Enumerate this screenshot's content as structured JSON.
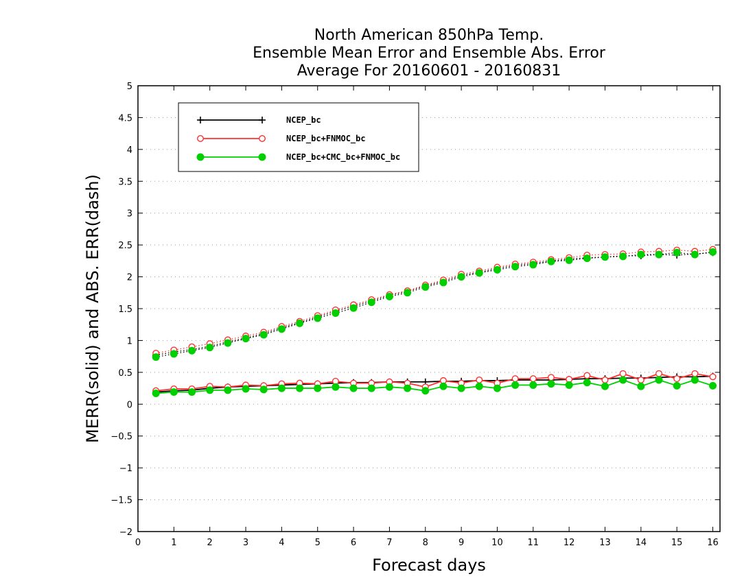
{
  "chart_data": {
    "type": "line",
    "title_lines": [
      "North American 850hPa Temp.",
      "Ensemble Mean Error and Ensemble Abs. Error",
      "Average For 20160601 - 20160831"
    ],
    "xlabel": "Forecast days",
    "ylabel": "MERR(solid) and ABS. ERR(dash)",
    "xlim": [
      0,
      16.2
    ],
    "ylim": [
      -2,
      5
    ],
    "xticks": [
      0,
      1,
      2,
      3,
      4,
      5,
      6,
      7,
      8,
      9,
      10,
      11,
      12,
      13,
      14,
      15,
      16
    ],
    "yticks": [
      5,
      4.5,
      4,
      3.5,
      3,
      2.5,
      2,
      1.5,
      1,
      0.5,
      0,
      -0.5,
      -1,
      -1.5,
      -2
    ],
    "grid": "horizontal dotted",
    "legend_position": "top-left",
    "x": [
      0.5,
      1,
      1.5,
      2,
      2.5,
      3,
      3.5,
      4,
      4.5,
      5,
      5.5,
      6,
      6.5,
      7,
      7.5,
      8,
      8.5,
      9,
      9.5,
      10,
      10.5,
      11,
      11.5,
      12,
      12.5,
      13,
      13.5,
      14,
      14.5,
      15,
      15.5,
      16
    ],
    "series": [
      {
        "name": "NCEP_bc",
        "color": "#000000",
        "marker": "plus",
        "merr": [
          0.19,
          0.21,
          0.22,
          0.25,
          0.27,
          0.28,
          0.29,
          0.3,
          0.31,
          0.32,
          0.33,
          0.34,
          0.34,
          0.35,
          0.35,
          0.35,
          0.36,
          0.36,
          0.37,
          0.37,
          0.38,
          0.38,
          0.38,
          0.39,
          0.4,
          0.4,
          0.41,
          0.41,
          0.42,
          0.43,
          0.43,
          0.44
        ],
        "abs_err": [
          0.77,
          0.82,
          0.86,
          0.91,
          0.98,
          1.04,
          1.11,
          1.2,
          1.28,
          1.37,
          1.46,
          1.54,
          1.62,
          1.71,
          1.77,
          1.86,
          1.93,
          2.02,
          2.07,
          2.13,
          2.18,
          2.21,
          2.25,
          2.28,
          2.3,
          2.31,
          2.33,
          2.33,
          2.35,
          2.34,
          2.36,
          2.38
        ]
      },
      {
        "name": "NCEP_bc+FNMOC_bc",
        "color": "#ff3030",
        "marker": "open-circle",
        "merr": [
          0.21,
          0.24,
          0.24,
          0.28,
          0.27,
          0.3,
          0.29,
          0.32,
          0.33,
          0.32,
          0.36,
          0.33,
          0.33,
          0.35,
          0.33,
          0.27,
          0.37,
          0.33,
          0.38,
          0.33,
          0.4,
          0.4,
          0.42,
          0.39,
          0.45,
          0.38,
          0.48,
          0.38,
          0.48,
          0.4,
          0.48,
          0.43
        ],
        "abs_err": [
          0.8,
          0.85,
          0.9,
          0.95,
          1.01,
          1.07,
          1.13,
          1.22,
          1.3,
          1.39,
          1.48,
          1.56,
          1.64,
          1.72,
          1.78,
          1.87,
          1.95,
          2.04,
          2.09,
          2.15,
          2.2,
          2.23,
          2.27,
          2.3,
          2.34,
          2.35,
          2.36,
          2.39,
          2.4,
          2.42,
          2.4,
          2.43
        ]
      },
      {
        "name": "NCEP_bc+CMC_bc+FNMOC_bc",
        "color": "#00d000",
        "marker": "filled-circle",
        "merr": [
          0.17,
          0.19,
          0.19,
          0.22,
          0.22,
          0.24,
          0.23,
          0.25,
          0.25,
          0.25,
          0.27,
          0.25,
          0.25,
          0.27,
          0.25,
          0.21,
          0.28,
          0.25,
          0.28,
          0.25,
          0.3,
          0.3,
          0.32,
          0.3,
          0.34,
          0.28,
          0.38,
          0.28,
          0.38,
          0.29,
          0.38,
          0.29
        ],
        "abs_err": [
          0.74,
          0.79,
          0.84,
          0.89,
          0.96,
          1.03,
          1.09,
          1.18,
          1.27,
          1.35,
          1.43,
          1.51,
          1.6,
          1.69,
          1.75,
          1.84,
          1.91,
          2.0,
          2.06,
          2.11,
          2.16,
          2.19,
          2.24,
          2.26,
          2.29,
          2.31,
          2.32,
          2.35,
          2.35,
          2.38,
          2.35,
          2.39
        ]
      }
    ]
  }
}
